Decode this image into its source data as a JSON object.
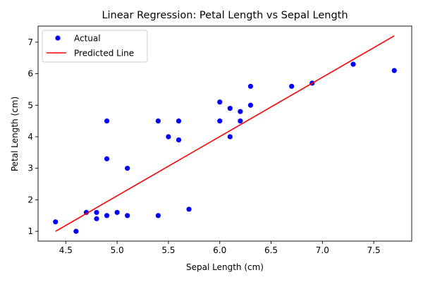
{
  "chart_data": {
    "type": "scatter",
    "title": "Linear Regression: Petal Length vs Sepal Length",
    "xlabel": "Sepal Length (cm)",
    "ylabel": "Petal Length (cm)",
    "xlim": [
      4.23,
      7.87
    ],
    "ylim": [
      0.69,
      7.51
    ],
    "xticks": [
      4.5,
      5.0,
      5.5,
      6.0,
      6.5,
      7.0,
      7.5
    ],
    "yticks": [
      1,
      2,
      3,
      4,
      5,
      6,
      7
    ],
    "xtick_labels": [
      "4.5",
      "5.0",
      "5.5",
      "6.0",
      "6.5",
      "7.0",
      "7.5"
    ],
    "ytick_labels": [
      "1",
      "2",
      "3",
      "4",
      "5",
      "6",
      "7"
    ],
    "grid": false,
    "legend_position": "top-left",
    "series": [
      {
        "name": "Actual",
        "kind": "scatter",
        "color": "#0000ff",
        "points": [
          [
            4.4,
            1.3
          ],
          [
            4.6,
            1.0
          ],
          [
            4.7,
            1.6
          ],
          [
            4.8,
            1.6
          ],
          [
            4.8,
            1.4
          ],
          [
            4.9,
            1.5
          ],
          [
            4.9,
            3.3
          ],
          [
            4.9,
            4.5
          ],
          [
            5.0,
            1.6
          ],
          [
            5.1,
            1.5
          ],
          [
            5.1,
            3.0
          ],
          [
            5.4,
            1.5
          ],
          [
            5.4,
            4.5
          ],
          [
            5.5,
            4.0
          ],
          [
            5.6,
            3.9
          ],
          [
            5.6,
            4.5
          ],
          [
            5.7,
            1.7
          ],
          [
            6.0,
            4.5
          ],
          [
            6.0,
            5.1
          ],
          [
            6.1,
            4.0
          ],
          [
            6.1,
            4.9
          ],
          [
            6.2,
            4.8
          ],
          [
            6.2,
            4.5
          ],
          [
            6.3,
            5.0
          ],
          [
            6.3,
            5.6
          ],
          [
            6.7,
            5.6
          ],
          [
            6.9,
            5.7
          ],
          [
            7.3,
            6.3
          ],
          [
            7.7,
            6.1
          ]
        ]
      },
      {
        "name": "Predicted Line",
        "kind": "line",
        "color": "#ff0000",
        "points": [
          [
            4.4,
            1.0
          ],
          [
            7.7,
            7.2
          ]
        ]
      }
    ]
  }
}
